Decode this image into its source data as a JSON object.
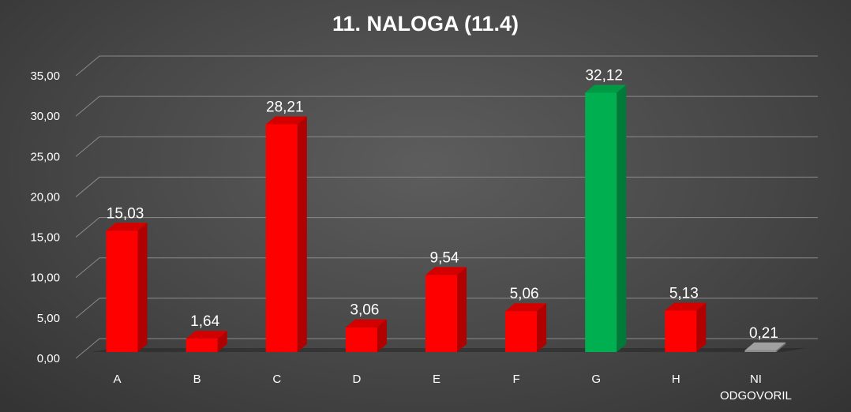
{
  "chart_data": {
    "type": "bar",
    "title": "11. NALOGA (11.4)",
    "categories": [
      "A",
      "B",
      "C",
      "D",
      "E",
      "F",
      "G",
      "H",
      "NI ODGOVORIL"
    ],
    "values": [
      15.03,
      1.64,
      28.21,
      3.06,
      9.54,
      5.06,
      32.12,
      5.13,
      0.21
    ],
    "value_labels": [
      "15,03",
      "1,64",
      "28,21",
      "3,06",
      "9,54",
      "5,06",
      "32,12",
      "5,13",
      "0,21"
    ],
    "yticks": [
      "0,00",
      "5,00",
      "10,00",
      "15,00",
      "20,00",
      "25,00",
      "30,00",
      "35,00"
    ],
    "ylim": [
      0,
      35
    ],
    "grid": true,
    "legend": "none",
    "style": "3d-column",
    "colors": {
      "default": "#ff0000",
      "correct": "#00b050",
      "no_answer": "#8c8c8c"
    },
    "bar_color_keys": [
      "default",
      "default",
      "default",
      "default",
      "default",
      "default",
      "correct",
      "default",
      "no_answer"
    ]
  }
}
